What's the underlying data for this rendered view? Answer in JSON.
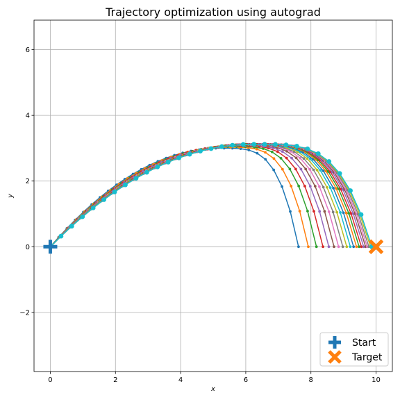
{
  "chart_data": {
    "type": "line",
    "title": "Trajectory optimization using autograd",
    "xlabel": "x",
    "ylabel": "y",
    "xlim": [
      -0.5,
      10.5
    ],
    "ylim": [
      -3.8,
      6.9
    ],
    "xticks": [
      0,
      2,
      4,
      6,
      8,
      10
    ],
    "yticks": [
      -2,
      0,
      2,
      4,
      6
    ],
    "xtick_labels": [
      "0",
      "2",
      "4",
      "6",
      "8",
      "10"
    ],
    "ytick_labels": [
      "−2",
      "0",
      "2",
      "4",
      "6"
    ],
    "grid": true,
    "legend": {
      "position": "lower-right",
      "entries": [
        {
          "label": "Start",
          "marker": "plus",
          "color": "#1f77b4"
        },
        {
          "label": "Target",
          "marker": "x",
          "color": "#ff7f0e"
        }
      ]
    },
    "start_point": {
      "x": 0,
      "y": 0
    },
    "target_point": {
      "x": 10,
      "y": 0
    },
    "trajectory_colors": [
      "#1f77b4",
      "#ff7f0e",
      "#2ca02c",
      "#d62728",
      "#9467bd",
      "#8c564b",
      "#e377c2",
      "#7f7f7f",
      "#bcbd22",
      "#17becf"
    ],
    "trajectory_landing_x": [
      7.62,
      7.92,
      8.17,
      8.37,
      8.55,
      8.71,
      8.85,
      8.98,
      9.1,
      9.21,
      9.31,
      9.4,
      9.48,
      9.55,
      9.62,
      9.68,
      9.73,
      9.78,
      9.83,
      9.87
    ],
    "trajectory_peak": [
      {
        "x": 5.2,
        "y": 3.0
      },
      {
        "x": 5.4,
        "y": 3.03
      },
      {
        "x": 5.55,
        "y": 3.05
      },
      {
        "x": 5.65,
        "y": 3.07
      },
      {
        "x": 5.75,
        "y": 3.08
      },
      {
        "x": 5.85,
        "y": 3.09
      },
      {
        "x": 5.9,
        "y": 3.1
      },
      {
        "x": 5.95,
        "y": 3.1
      },
      {
        "x": 6.0,
        "y": 3.11
      },
      {
        "x": 6.05,
        "y": 3.11
      },
      {
        "x": 6.08,
        "y": 3.11
      },
      {
        "x": 6.1,
        "y": 3.12
      },
      {
        "x": 6.12,
        "y": 3.12
      },
      {
        "x": 6.14,
        "y": 3.12
      },
      {
        "x": 6.16,
        "y": 3.12
      },
      {
        "x": 6.18,
        "y": 3.12
      },
      {
        "x": 6.19,
        "y": 3.12
      },
      {
        "x": 6.2,
        "y": 3.12
      },
      {
        "x": 6.2,
        "y": 3.12
      },
      {
        "x": 6.21,
        "y": 3.12
      }
    ]
  }
}
